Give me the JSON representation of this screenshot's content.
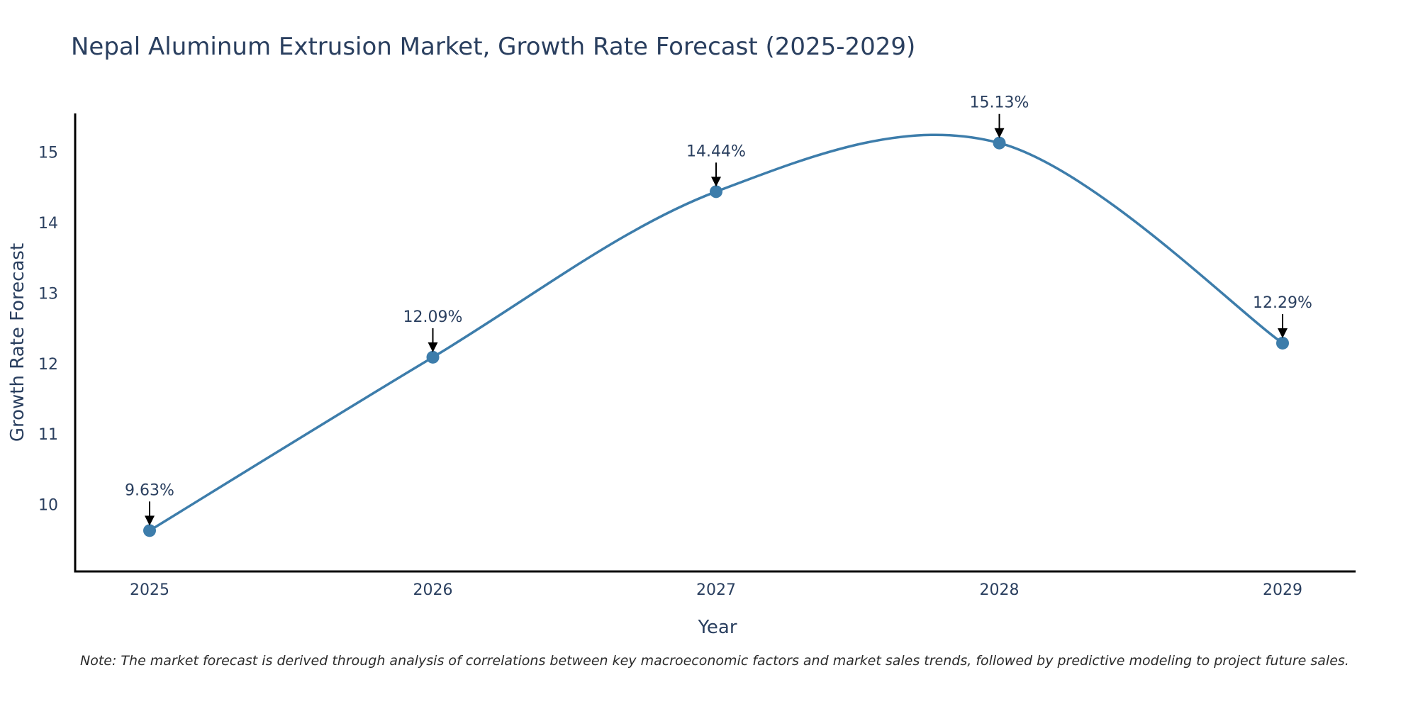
{
  "chart_data": {
    "type": "line",
    "title": "Nepal Aluminum Extrusion Market, Growth Rate Forecast (2025-2029)",
    "xlabel": "Year",
    "ylabel": "Growth Rate Forecast",
    "categories": [
      "2025",
      "2026",
      "2027",
      "2028",
      "2029"
    ],
    "series": [
      {
        "name": "Growth Rate Forecast",
        "values": [
          9.63,
          12.09,
          14.44,
          15.13,
          12.29
        ],
        "labels": [
          "9.63%",
          "12.09%",
          "14.44%",
          "15.13%",
          "12.29%"
        ]
      }
    ],
    "ylim": [
      9.05,
      15.55
    ],
    "yticks": [
      10,
      11,
      12,
      13,
      14,
      15
    ],
    "ytick_labels": [
      "10",
      "11",
      "12",
      "13",
      "14",
      "15"
    ],
    "grid": false,
    "line_color": "#3d7dab",
    "annotation_color": "#000000",
    "note": "Note: The market forecast is derived through analysis of correlations between key macroeconomic factors and market sales trends, followed by predictive modeling to project future sales."
  }
}
